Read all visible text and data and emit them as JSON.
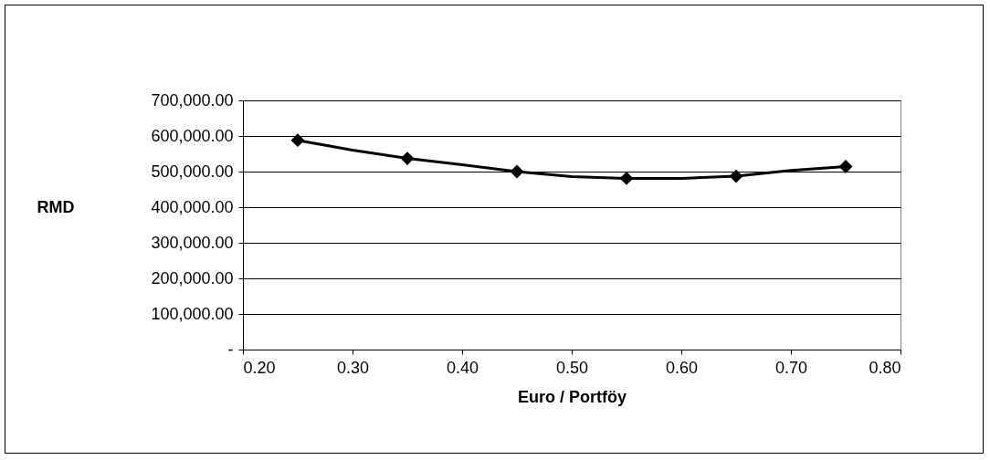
{
  "chart_data": {
    "type": "line",
    "xlabel": "Euro / Portföy",
    "ylabel": "RMD",
    "xlim": [
      0.2,
      0.8
    ],
    "xticks": [
      {
        "value": 0.2,
        "label": "0.20"
      },
      {
        "value": 0.3,
        "label": "0.30"
      },
      {
        "value": 0.4,
        "label": "0.40"
      },
      {
        "value": 0.5,
        "label": "0.50"
      },
      {
        "value": 0.6,
        "label": "0.60"
      },
      {
        "value": 0.7,
        "label": "0.70"
      },
      {
        "value": 0.8,
        "label": "0.80"
      }
    ],
    "ylim": [
      0,
      700000
    ],
    "yticks": [
      {
        "value": 0,
        "label": "-"
      },
      {
        "value": 100000,
        "label": "100,000.00"
      },
      {
        "value": 200000,
        "label": "200,000.00"
      },
      {
        "value": 300000,
        "label": "300,000.00"
      },
      {
        "value": 400000,
        "label": "400,000.00"
      },
      {
        "value": 500000,
        "label": "500,000.00"
      },
      {
        "value": 600000,
        "label": "600,000.00"
      },
      {
        "value": 700000,
        "label": "700,000.00"
      }
    ],
    "grid": "y",
    "series": [
      {
        "type": "line",
        "marker": "none",
        "color": "#000000",
        "x": [
          0.25,
          0.3,
          0.35,
          0.4,
          0.45,
          0.5,
          0.55,
          0.6,
          0.65,
          0.7,
          0.75
        ],
        "values": [
          588000,
          560000,
          537000,
          519000,
          500000,
          486000,
          481000,
          481000,
          487000,
          503000,
          514000
        ]
      },
      {
        "type": "scatter",
        "marker": "diamond",
        "color": "#000000",
        "x": [
          0.25,
          0.35,
          0.45,
          0.55,
          0.65,
          0.75
        ],
        "values": [
          588000,
          537000,
          500000,
          481000,
          487000,
          514000
        ]
      }
    ]
  }
}
